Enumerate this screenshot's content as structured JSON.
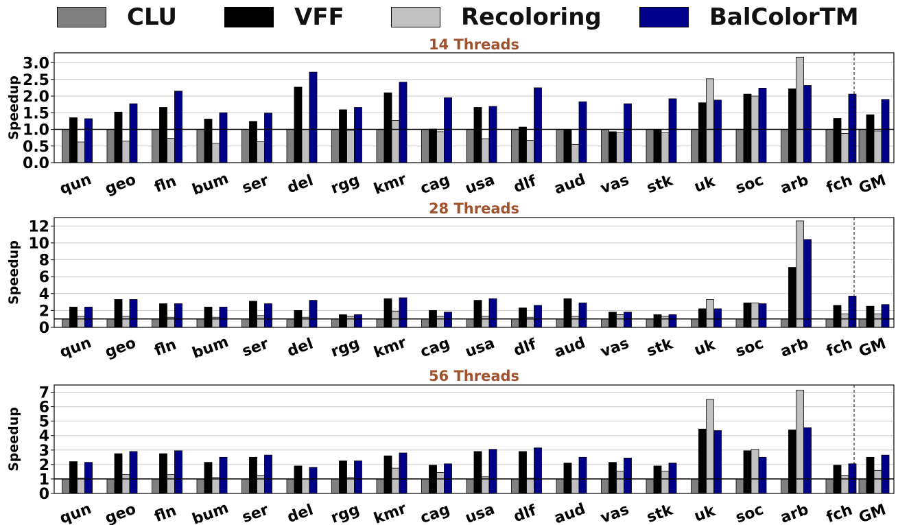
{
  "legend": [
    {
      "name": "CLU",
      "color": "#808080"
    },
    {
      "name": "VFF",
      "color": "#000000"
    },
    {
      "name": "Recoloring",
      "color": "#c0c0c0"
    },
    {
      "name": "BalColorTM",
      "color": "#00008b"
    }
  ],
  "chart_data": [
    {
      "type": "bar",
      "title": "14 Threads",
      "ylabel": "Speedup",
      "ylim": [
        0,
        3.3
      ],
      "yticks": [
        "0.0",
        "0.5",
        "1.0",
        "1.5",
        "2.0",
        "2.5",
        "3.0"
      ],
      "baseline": 1,
      "grid": true,
      "categories": [
        "qun",
        "geo",
        "fln",
        "bum",
        "ser",
        "del",
        "rgg",
        "kmr",
        "cag",
        "usa",
        "dlf",
        "aud",
        "vas",
        "stk",
        "uk",
        "soc",
        "arb",
        "fch",
        "GM"
      ],
      "series": [
        {
          "name": "CLU",
          "values": [
            1,
            1,
            1,
            1,
            1,
            1,
            1,
            1,
            1,
            1,
            1,
            1,
            1,
            1,
            1,
            1,
            1,
            1,
            1
          ]
        },
        {
          "name": "VFF",
          "values": [
            1.35,
            1.52,
            1.66,
            1.31,
            1.24,
            2.27,
            1.59,
            2.1,
            1.01,
            1.66,
            1.07,
            0.98,
            0.93,
            0.98,
            1.8,
            2.06,
            2.22,
            1.33,
            1.44
          ]
        },
        {
          "name": "Recoloring",
          "values": [
            0.62,
            0.65,
            0.73,
            0.58,
            0.63,
            1.0,
            0.97,
            1.27,
            0.93,
            0.72,
            0.67,
            0.55,
            0.9,
            0.9,
            2.52,
            2.0,
            3.17,
            0.88,
            0.95
          ]
        },
        {
          "name": "BalColorTM",
          "values": [
            1.32,
            1.77,
            2.15,
            1.5,
            1.49,
            2.72,
            1.66,
            2.42,
            1.95,
            1.69,
            2.25,
            1.83,
            1.77,
            1.92,
            1.88,
            2.24,
            2.32,
            2.06,
            1.9
          ]
        }
      ]
    },
    {
      "type": "bar",
      "title": "28 Threads",
      "ylabel": "Speedup",
      "ylim": [
        0,
        13
      ],
      "yticks": [
        "0",
        "2",
        "4",
        "6",
        "8",
        "10",
        "12"
      ],
      "baseline": 1,
      "grid": true,
      "categories": [
        "qun",
        "geo",
        "fln",
        "bum",
        "ser",
        "del",
        "rgg",
        "kmr",
        "cag",
        "usa",
        "dlf",
        "aud",
        "vas",
        "stk",
        "uk",
        "soc",
        "arb",
        "fch",
        "GM"
      ],
      "series": [
        {
          "name": "CLU",
          "values": [
            1,
            1,
            1,
            1,
            1,
            1,
            1,
            1,
            1,
            1,
            1,
            1,
            1,
            1,
            1,
            1,
            1,
            1,
            1
          ]
        },
        {
          "name": "VFF",
          "values": [
            2.4,
            3.3,
            2.8,
            2.4,
            3.1,
            2.0,
            1.5,
            3.4,
            2.0,
            3.2,
            2.3,
            3.4,
            1.8,
            1.5,
            2.2,
            2.9,
            7.1,
            2.6,
            2.5
          ]
        },
        {
          "name": "Recoloring",
          "values": [
            1.3,
            1.3,
            1.2,
            1.2,
            1.4,
            1.2,
            1.3,
            1.9,
            1.3,
            1.3,
            1.2,
            1.3,
            1.5,
            1.3,
            3.3,
            2.9,
            12.6,
            1.6,
            1.6
          ]
        },
        {
          "name": "BalColorTM",
          "values": [
            2.4,
            3.3,
            2.8,
            2.4,
            2.8,
            3.2,
            1.5,
            3.5,
            1.8,
            3.4,
            2.6,
            2.9,
            1.8,
            1.5,
            2.2,
            2.8,
            10.4,
            3.7,
            2.7
          ]
        }
      ]
    },
    {
      "type": "bar",
      "title": "56 Threads",
      "ylabel": "Speedup",
      "ylim": [
        0,
        7.5
      ],
      "yticks": [
        "0",
        "1",
        "2",
        "3",
        "4",
        "5",
        "6",
        "7"
      ],
      "baseline": 1,
      "grid": true,
      "categories": [
        "qun",
        "geo",
        "fln",
        "bum",
        "ser",
        "del",
        "rgg",
        "kmr",
        "cag",
        "usa",
        "dlf",
        "aud",
        "vas",
        "stk",
        "uk",
        "soc",
        "arb",
        "fch",
        "GM"
      ],
      "series": [
        {
          "name": "CLU",
          "values": [
            1,
            1,
            1,
            1,
            1,
            1,
            1,
            1,
            1,
            1,
            1,
            1,
            1,
            1,
            1,
            1,
            1,
            1,
            1
          ]
        },
        {
          "name": "VFF",
          "values": [
            2.2,
            2.75,
            2.75,
            2.15,
            2.5,
            1.9,
            2.25,
            2.6,
            1.95,
            2.9,
            2.9,
            2.1,
            2.15,
            1.9,
            4.45,
            2.95,
            4.4,
            1.95,
            2.5
          ]
        },
        {
          "name": "Recoloring",
          "values": [
            1.05,
            1.3,
            1.3,
            1.1,
            1.25,
            1.0,
            1.1,
            1.75,
            1.45,
            1.15,
            1.05,
            1.0,
            1.55,
            1.55,
            6.5,
            3.05,
            7.15,
            1.25,
            1.6
          ]
        },
        {
          "name": "BalColorTM",
          "values": [
            2.15,
            2.9,
            2.95,
            2.5,
            2.65,
            1.8,
            2.25,
            2.8,
            2.05,
            3.05,
            3.15,
            2.5,
            2.45,
            2.1,
            4.35,
            2.5,
            4.55,
            2.05,
            2.65
          ]
        }
      ]
    }
  ]
}
